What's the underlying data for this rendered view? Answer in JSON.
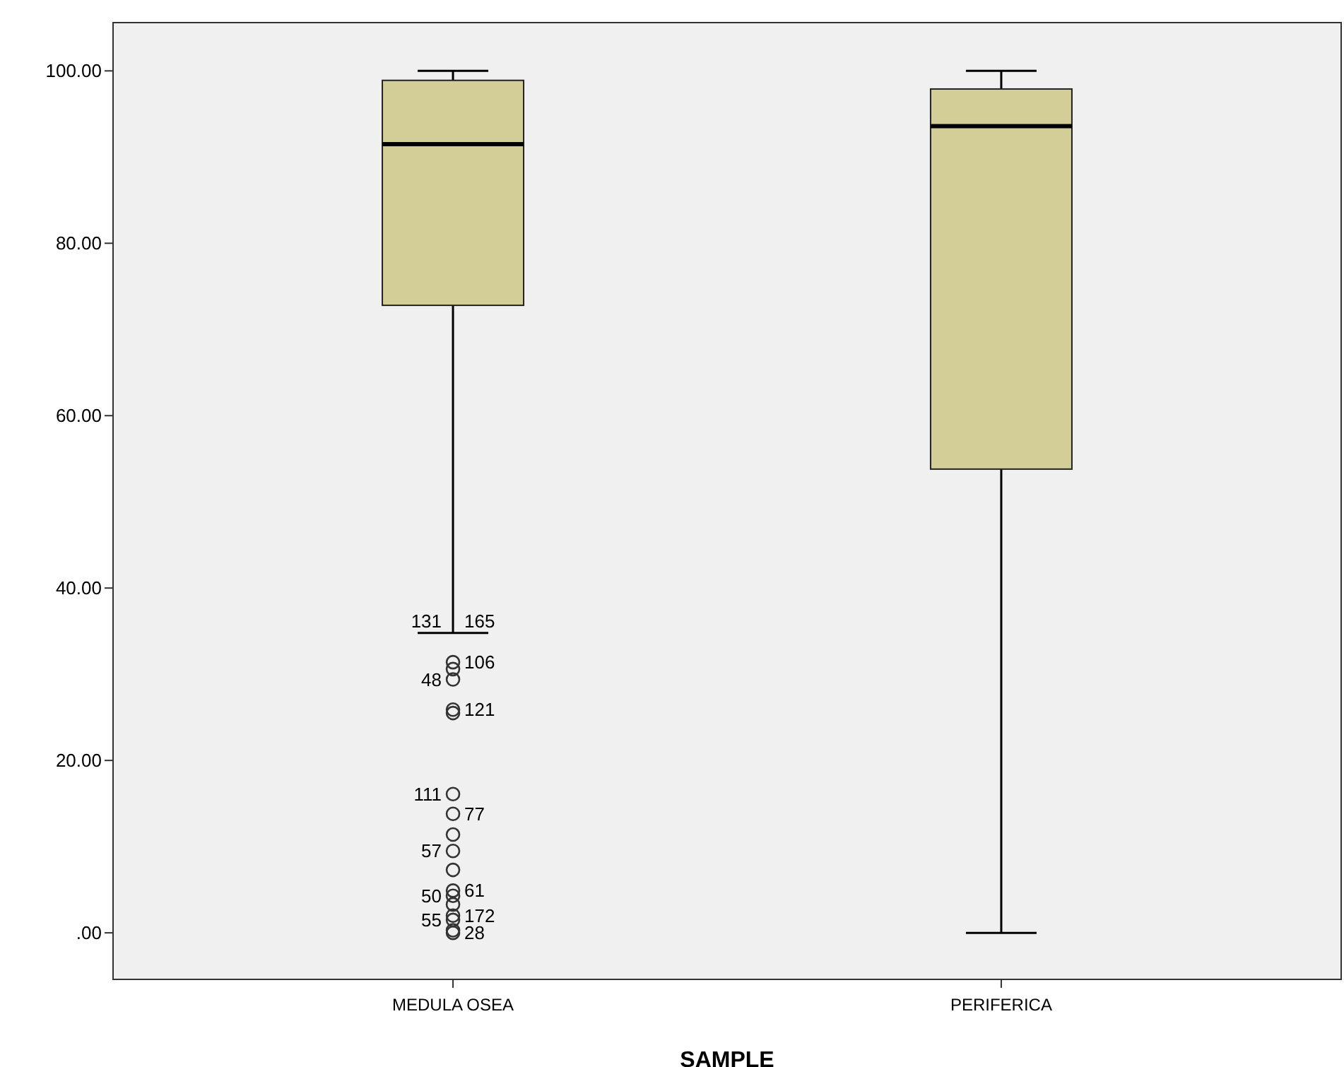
{
  "chart_data": {
    "type": "box",
    "xlabel": "SAMPLE",
    "categories": [
      "MEDULA OSEA",
      "PERIFERICA"
    ],
    "color": "#d3ce97",
    "boxes": [
      {
        "low": 34.8,
        "q1": 72.8,
        "median": 91.5,
        "q3": 98.9,
        "high": 100,
        "outliers": [
          31.4,
          30.6,
          29.4,
          25.9,
          25.5,
          16.1,
          13.8,
          11.4,
          9.5,
          7.3,
          4.9,
          4.3,
          3.3,
          2.0,
          1.5,
          0.3,
          0.0
        ]
      },
      {
        "low": 0,
        "q1": 53.8,
        "median": 93.6,
        "q3": 97.9,
        "high": 100
      }
    ],
    "ylim": [
      -5.4,
      105.6
    ],
    "yticks": [
      {
        "value": 0,
        "label": ".00"
      },
      {
        "value": 20,
        "label": "20.00"
      },
      {
        "value": 40,
        "label": "40.00"
      },
      {
        "value": 60,
        "label": "60.00"
      },
      {
        "value": 80,
        "label": "80.00"
      },
      {
        "value": 100,
        "label": "100.00"
      }
    ],
    "grid": false,
    "annotations": [
      {
        "text": "165",
        "x": "MEDULA OSEA",
        "y": 34.8
      },
      {
        "text": "131",
        "x": "MEDULA OSEA",
        "y": 34.8
      },
      "106",
      "48",
      "121",
      "111",
      "77",
      "57",
      "61",
      "50",
      "172",
      "55",
      "28"
    ]
  }
}
